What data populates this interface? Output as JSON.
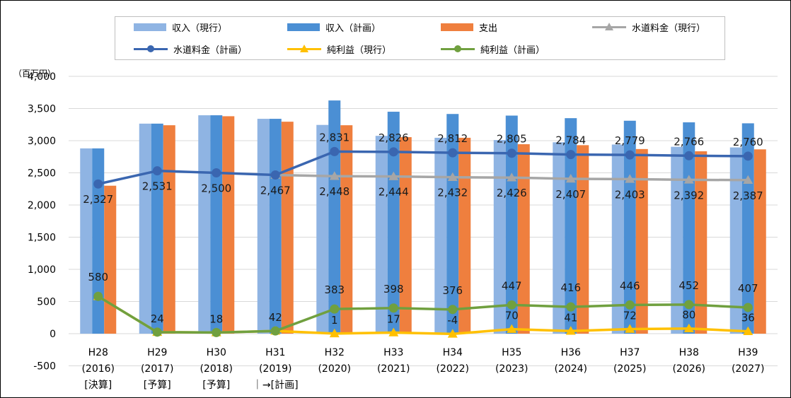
{
  "chart_data": {
    "type": "bar",
    "unit_label": "（百万円）",
    "ylim": [
      -500,
      4000
    ],
    "yticks": [
      "4,000",
      "3,500",
      "3,000",
      "2,500",
      "2,000",
      "1,500",
      "1,000",
      "500",
      "0",
      "-500"
    ],
    "ytick_values": [
      4000,
      3500,
      3000,
      2500,
      2000,
      1500,
      1000,
      500,
      0,
      -500
    ],
    "grid": true,
    "legend_position": "top",
    "categories": [
      [
        "H28",
        "(2016)",
        "[決算]"
      ],
      [
        "H29",
        "(2017)",
        "[予算]"
      ],
      [
        "H30",
        "(2018)",
        "[予算]"
      ],
      [
        "H31",
        "(2019)",
        "｜→[計画]"
      ],
      [
        "H32",
        "(2020)",
        ""
      ],
      [
        "H33",
        "(2021)",
        ""
      ],
      [
        "H34",
        "(2022)",
        ""
      ],
      [
        "H35",
        "(2023)",
        ""
      ],
      [
        "H36",
        "(2024)",
        ""
      ],
      [
        "H37",
        "(2025)",
        ""
      ],
      [
        "H38",
        "(2026)",
        ""
      ],
      [
        "H39",
        "(2027)",
        ""
      ]
    ],
    "bar_series": [
      {
        "name": "収入(現行)",
        "color": "#8fb4e3",
        "values": [
          2880,
          3265,
          3395,
          3340,
          3245,
          3075,
          3045,
          3010,
          2975,
          2940,
          2905,
          2895
        ]
      },
      {
        "name": "収入(計画)",
        "color": "#4b8fd4",
        "values": [
          2880,
          3265,
          3395,
          3340,
          3625,
          3450,
          3415,
          3390,
          3350,
          3310,
          3285,
          3270
        ]
      },
      {
        "name": "支出",
        "color": "#ef7f3e",
        "values": [
          2300,
          3240,
          3380,
          3295,
          3240,
          3055,
          3045,
          2945,
          2930,
          2870,
          2835,
          2865
        ]
      }
    ],
    "line_series": [
      {
        "name": "水道料金(現行)",
        "color": "#a6a6a6",
        "marker": "triangle",
        "values": [
          null,
          null,
          null,
          2467,
          2448,
          2444,
          2432,
          2426,
          2407,
          2403,
          2392,
          2387
        ]
      },
      {
        "name": "水道料金(計画)",
        "color": "#3a66b0",
        "marker": "circle",
        "values": [
          2327,
          2531,
          2500,
          2467,
          2831,
          2826,
          2812,
          2805,
          2784,
          2779,
          2766,
          2760
        ]
      },
      {
        "name": "純利益(現行)",
        "color": "#ffc000",
        "marker": "triangle",
        "values": [
          580,
          24,
          18,
          42,
          1,
          17,
          -4,
          70,
          41,
          72,
          80,
          36
        ]
      },
      {
        "name": "純利益(計画)",
        "color": "#70a03f",
        "marker": "circle",
        "values": [
          580,
          24,
          18,
          42,
          383,
          398,
          376,
          447,
          416,
          446,
          452,
          407
        ]
      }
    ],
    "data_labels": {
      "water_plan": [
        "",
        "",
        "",
        "",
        "2,831",
        "2,826",
        "2,812",
        "2,805",
        "2,784",
        "2,779",
        "2,766",
        "2,760"
      ],
      "water_current": [
        "2,327",
        "2,531",
        "2,500",
        "2,467",
        "2,448",
        "2,444",
        "2,432",
        "2,426",
        "2,407",
        "2,403",
        "2,392",
        "2,387"
      ],
      "profit_plan": [
        "580",
        "",
        "",
        "",
        "383",
        "398",
        "376",
        "447",
        "416",
        "446",
        "452",
        "407"
      ],
      "profit_current": [
        "",
        "24",
        "18",
        "42",
        "1",
        "17",
        "-4",
        "70",
        "41",
        "72",
        "80",
        "36"
      ]
    }
  },
  "legend": [
    {
      "label": "収入（現行）",
      "kind": "bar",
      "color": "#8fb4e3"
    },
    {
      "label": "収入（計画）",
      "kind": "bar",
      "color": "#4b8fd4"
    },
    {
      "label": "支出",
      "kind": "bar",
      "color": "#ef7f3e"
    },
    {
      "label": "水道料金（現行）",
      "kind": "line-triangle",
      "color": "#a6a6a6"
    },
    {
      "label": "水道料金（計画）",
      "kind": "line-circle",
      "color": "#3a66b0"
    },
    {
      "label": "純利益（現行）",
      "kind": "line-triangle",
      "color": "#ffc000"
    },
    {
      "label": "純利益（計画）",
      "kind": "line-circle",
      "color": "#70a03f"
    }
  ]
}
